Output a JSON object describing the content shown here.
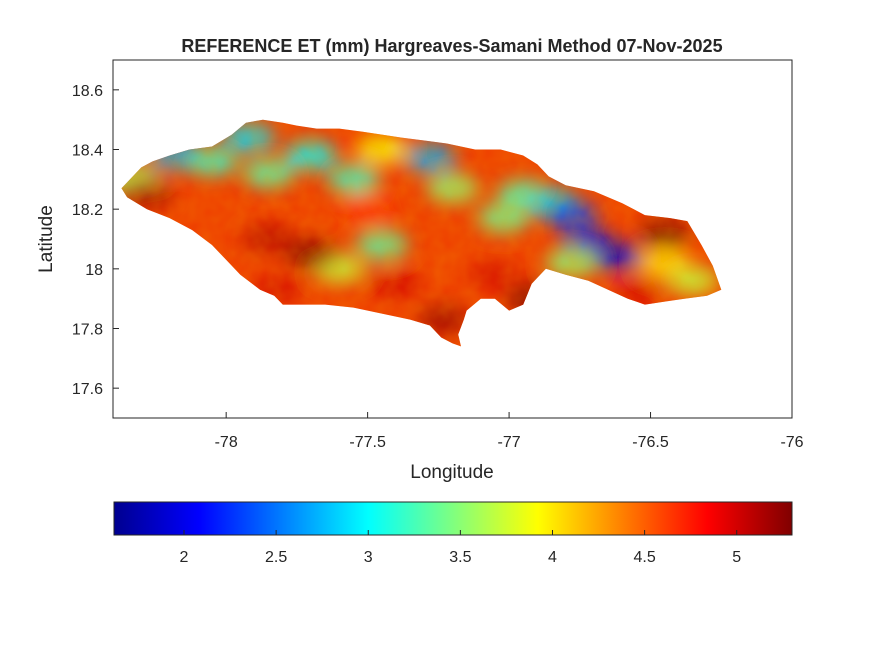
{
  "chart_data": {
    "type": "heatmap",
    "title": "REFERENCE ET (mm) Hargreaves-Samani Method  07-Nov-2025",
    "xlabel": "Longitude",
    "ylabel": "Latitude",
    "xlim": [
      -78.4,
      -76
    ],
    "ylim": [
      17.5,
      18.7
    ],
    "x_ticks": [
      -78,
      -77.5,
      -77,
      -76.5,
      -76
    ],
    "x_tick_labels": [
      "-78",
      "-77.5",
      "-77",
      "-76.5",
      "-76"
    ],
    "y_ticks": [
      17.6,
      17.8,
      18,
      18.2,
      18.4,
      18.6
    ],
    "y_tick_labels": [
      "17.6",
      "17.8",
      "18",
      "18.2",
      "18.4",
      "18.6"
    ],
    "grid": false,
    "region": "Jamaica",
    "colormap": "jet",
    "colorbar": {
      "orientation": "horizontal",
      "position": "bottom",
      "range": [
        1.62,
        5.3
      ],
      "ticks": [
        2,
        2.5,
        3,
        3.5,
        4,
        4.5,
        5
      ],
      "tick_labels": [
        "2",
        "2.5",
        "3",
        "3.5",
        "4",
        "4.5",
        "5"
      ]
    },
    "field_features": [
      {
        "lon": -78.33,
        "lat": 18.3,
        "et": 3.6
      },
      {
        "lon": -78.18,
        "lat": 18.38,
        "et": 2.7
      },
      {
        "lon": -78.05,
        "lat": 18.36,
        "et": 3.2
      },
      {
        "lon": -77.92,
        "lat": 18.44,
        "et": 2.9
      },
      {
        "lon": -77.85,
        "lat": 18.32,
        "et": 3.3
      },
      {
        "lon": -77.7,
        "lat": 18.38,
        "et": 3.0
      },
      {
        "lon": -77.55,
        "lat": 18.3,
        "et": 3.2
      },
      {
        "lon": -77.45,
        "lat": 18.4,
        "et": 3.9
      },
      {
        "lon": -77.28,
        "lat": 18.37,
        "et": 2.7
      },
      {
        "lon": -77.2,
        "lat": 18.27,
        "et": 3.5
      },
      {
        "lon": -77.45,
        "lat": 18.08,
        "et": 3.3
      },
      {
        "lon": -77.6,
        "lat": 18.0,
        "et": 3.7
      },
      {
        "lon": -77.02,
        "lat": 18.17,
        "et": 3.4
      },
      {
        "lon": -76.95,
        "lat": 18.25,
        "et": 3.3
      },
      {
        "lon": -76.85,
        "lat": 18.22,
        "et": 2.9
      },
      {
        "lon": -76.78,
        "lat": 18.18,
        "et": 2.3
      },
      {
        "lon": -76.72,
        "lat": 18.09,
        "et": 2.0
      },
      {
        "lon": -76.62,
        "lat": 18.04,
        "et": 1.9
      },
      {
        "lon": -76.78,
        "lat": 18.02,
        "et": 3.5
      },
      {
        "lon": -76.45,
        "lat": 18.02,
        "et": 4.0
      },
      {
        "lon": -76.35,
        "lat": 17.96,
        "et": 3.7
      },
      {
        "lon": -78.28,
        "lat": 18.25,
        "et": 5.2
      },
      {
        "lon": -77.85,
        "lat": 18.1,
        "et": 5.1
      },
      {
        "lon": -77.7,
        "lat": 18.05,
        "et": 5.3
      },
      {
        "lon": -77.82,
        "lat": 17.93,
        "et": 5.0
      },
      {
        "lon": -77.4,
        "lat": 17.95,
        "et": 5.0
      },
      {
        "lon": -77.05,
        "lat": 17.98,
        "et": 5.0
      },
      {
        "lon": -76.92,
        "lat": 17.9,
        "et": 5.3
      },
      {
        "lon": -77.23,
        "lat": 17.83,
        "et": 5.2
      },
      {
        "lon": -76.45,
        "lat": 18.12,
        "et": 5.3
      },
      {
        "lon": -76.55,
        "lat": 17.92,
        "et": 5.0
      },
      {
        "lon": -77.5,
        "lat": 18.2,
        "et": 4.7
      }
    ]
  }
}
